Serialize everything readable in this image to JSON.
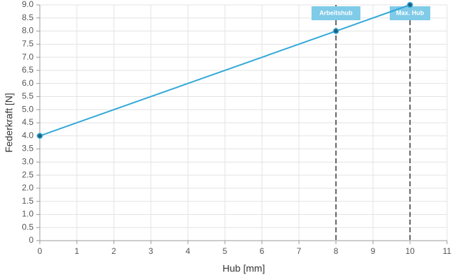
{
  "chart_data": {
    "type": "line",
    "x_label": "Hub [mm]",
    "y_label": "Federkraft [N]",
    "x": [
      0,
      8,
      10
    ],
    "values": [
      4,
      8,
      9
    ],
    "color": "#33a8d8",
    "xlim": [
      0,
      11
    ],
    "xticks": [
      0,
      1,
      2,
      3,
      4,
      5,
      6,
      7,
      8,
      9,
      10,
      11
    ],
    "ylim": [
      0,
      9
    ],
    "yticks": [
      0,
      0.5,
      {
        "value": 1,
        "label": "1.0"
      },
      1.5,
      {
        "value": 2,
        "label": "2.0"
      },
      2.5,
      {
        "value": 3,
        "label": "3.0"
      },
      3.5,
      {
        "value": 4,
        "label": "4.0"
      },
      4.5,
      {
        "value": 5,
        "label": "5.0"
      },
      5.5,
      {
        "value": 6,
        "label": "6.0"
      },
      6.5,
      {
        "value": 7,
        "label": "7.0"
      },
      7.5,
      {
        "value": 8,
        "label": "8.0"
      },
      8.5,
      {
        "value": 9,
        "label": "9.0"
      }
    ],
    "grid": true,
    "annotations": [
      {
        "x": 8,
        "label": "Arbeitshub"
      },
      {
        "x": 10,
        "label": "Max. Hub"
      }
    ],
    "annotation_color": "#7fcbe8"
  }
}
